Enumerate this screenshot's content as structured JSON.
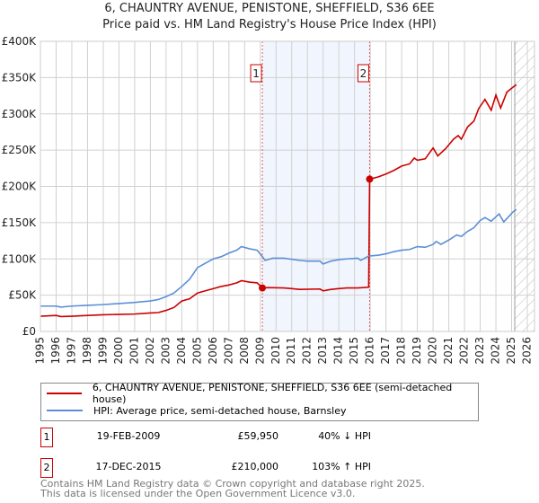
{
  "chart_data": {
    "type": "line",
    "title": "6, CHAUNTRY AVENUE, PENISTONE, SHEFFIELD, S36 6EE",
    "subtitle": "Price paid vs. HM Land Registry's House Price Index (HPI)",
    "xlim": [
      1995,
      2026
    ],
    "ylim": [
      0,
      400000
    ],
    "y_ticks": [
      {
        "v": 0,
        "label": "£0"
      },
      {
        "v": 50000,
        "label": "£50K"
      },
      {
        "v": 100000,
        "label": "£100K"
      },
      {
        "v": 150000,
        "label": "£150K"
      },
      {
        "v": 200000,
        "label": "£200K"
      },
      {
        "v": 250000,
        "label": "£250K"
      },
      {
        "v": 300000,
        "label": "£300K"
      },
      {
        "v": 350000,
        "label": "£350K"
      },
      {
        "v": 400000,
        "label": "£400K"
      }
    ],
    "x_ticks": [
      "1995",
      "1996",
      "1997",
      "1998",
      "1999",
      "2000",
      "2001",
      "2002",
      "2003",
      "2004",
      "2005",
      "2006",
      "2007",
      "2008",
      "2009",
      "2010",
      "2011",
      "2012",
      "2013",
      "2014",
      "2015",
      "2016",
      "2017",
      "2018",
      "2019",
      "2020",
      "2021",
      "2022",
      "2023",
      "2024",
      "2025",
      "2026"
    ],
    "grid": true,
    "shaded_range": [
      2009.13,
      2015.96
    ],
    "forecast_hatch_from": 2025.2,
    "markers": [
      {
        "label": "1",
        "x": 2009.13,
        "y": 59950
      },
      {
        "label": "2",
        "x": 2015.96,
        "y": 210000
      }
    ],
    "series": [
      {
        "name": "6, CHAUNTRY AVENUE, PENISTONE, SHEFFIELD, S36 6EE (semi-detached house)",
        "color": "#cc0000",
        "points": [
          [
            1995,
            21
          ],
          [
            1996,
            22
          ],
          [
            1996.3,
            20.5
          ],
          [
            1997,
            21
          ],
          [
            1998,
            22
          ],
          [
            1999,
            23
          ],
          [
            2000,
            23.5
          ],
          [
            2001,
            24
          ],
          [
            2002,
            25.5
          ],
          [
            2002.5,
            26
          ],
          [
            2003,
            29
          ],
          [
            2003.5,
            33
          ],
          [
            2004,
            42
          ],
          [
            2004.5,
            45
          ],
          [
            2005,
            53
          ],
          [
            2005.5,
            56
          ],
          [
            2006,
            59
          ],
          [
            2006.5,
            62
          ],
          [
            2007,
            64
          ],
          [
            2007.5,
            67
          ],
          [
            2007.8,
            70
          ],
          [
            2008.3,
            68
          ],
          [
            2008.8,
            67
          ],
          [
            2009.13,
            59.95
          ],
          [
            2009.5,
            60.5
          ],
          [
            2010.5,
            60
          ],
          [
            2011,
            59
          ],
          [
            2011.5,
            58
          ],
          [
            2012.8,
            58.5
          ],
          [
            2013,
            56
          ],
          [
            2013.5,
            58
          ],
          [
            2014,
            59
          ],
          [
            2014.5,
            60
          ],
          [
            2015.2,
            60
          ],
          [
            2015.9,
            61
          ],
          [
            2015.96,
            210
          ],
          [
            2016.5,
            213
          ],
          [
            2017,
            217
          ],
          [
            2017.5,
            222
          ],
          [
            2018,
            228
          ],
          [
            2018.5,
            231
          ],
          [
            2018.8,
            239
          ],
          [
            2019,
            236
          ],
          [
            2019.5,
            238
          ],
          [
            2020,
            253
          ],
          [
            2020.3,
            242
          ],
          [
            2020.8,
            252
          ],
          [
            2021.3,
            265
          ],
          [
            2021.6,
            270
          ],
          [
            2021.8,
            265
          ],
          [
            2022.2,
            282
          ],
          [
            2022.6,
            290
          ],
          [
            2022.9,
            307
          ],
          [
            2023.3,
            320
          ],
          [
            2023.7,
            305
          ],
          [
            2024,
            326
          ],
          [
            2024.3,
            308
          ],
          [
            2024.7,
            330
          ],
          [
            2025.1,
            337
          ],
          [
            2025.3,
            340
          ]
        ]
      },
      {
        "name": "HPI: Average price, semi-detached house, Barnsley",
        "color": "#5b8fd6",
        "points": [
          [
            1995,
            35
          ],
          [
            1996,
            35
          ],
          [
            1996.3,
            33.5
          ],
          [
            1997,
            35
          ],
          [
            1998,
            36
          ],
          [
            1999,
            37
          ],
          [
            2000,
            38.5
          ],
          [
            2001,
            40
          ],
          [
            2002,
            42
          ],
          [
            2002.5,
            44
          ],
          [
            2003,
            48
          ],
          [
            2003.5,
            53
          ],
          [
            2004,
            62
          ],
          [
            2004.5,
            72
          ],
          [
            2005,
            88
          ],
          [
            2005.5,
            94
          ],
          [
            2006,
            100
          ],
          [
            2006.5,
            103
          ],
          [
            2007,
            108
          ],
          [
            2007.5,
            112
          ],
          [
            2007.8,
            117
          ],
          [
            2008.3,
            114
          ],
          [
            2008.8,
            112
          ],
          [
            2009.1,
            104
          ],
          [
            2009.3,
            98
          ],
          [
            2009.8,
            101
          ],
          [
            2010.5,
            101
          ],
          [
            2011.5,
            98
          ],
          [
            2012,
            97
          ],
          [
            2012.8,
            97
          ],
          [
            2013,
            93
          ],
          [
            2013.5,
            97
          ],
          [
            2014,
            99
          ],
          [
            2014.5,
            100
          ],
          [
            2015.2,
            101
          ],
          [
            2015.4,
            98
          ],
          [
            2015.9,
            104
          ],
          [
            2016.5,
            105
          ],
          [
            2017,
            107
          ],
          [
            2017.5,
            110
          ],
          [
            2018,
            112
          ],
          [
            2018.5,
            113
          ],
          [
            2019,
            117
          ],
          [
            2019.5,
            116
          ],
          [
            2020,
            120
          ],
          [
            2020.2,
            124
          ],
          [
            2020.5,
            120
          ],
          [
            2021,
            126
          ],
          [
            2021.5,
            133
          ],
          [
            2021.8,
            131
          ],
          [
            2022.2,
            138
          ],
          [
            2022.6,
            143
          ],
          [
            2023,
            153
          ],
          [
            2023.3,
            157
          ],
          [
            2023.7,
            152
          ],
          [
            2024,
            158
          ],
          [
            2024.2,
            162
          ],
          [
            2024.5,
            151
          ],
          [
            2024.8,
            158
          ],
          [
            2025.1,
            165
          ],
          [
            2025.3,
            168
          ]
        ]
      }
    ],
    "y_unit": "thousand GBP"
  },
  "legend": {
    "items": [
      {
        "label": "6, CHAUNTRY AVENUE, PENISTONE, SHEFFIELD, S36 6EE (semi-detached house)",
        "color": "#cc0000"
      },
      {
        "label": "HPI: Average price, semi-detached house, Barnsley",
        "color": "#5b8fd6"
      }
    ]
  },
  "transactions": [
    {
      "num": "1",
      "date": "19-FEB-2009",
      "price": "£59,950",
      "hpi": "40% ↓ HPI"
    },
    {
      "num": "2",
      "date": "17-DEC-2015",
      "price": "£210,000",
      "hpi": "103% ↑ HPI"
    }
  ],
  "footer": {
    "line1": "Contains HM Land Registry data © Crown copyright and database right 2025.",
    "line2": "This data is licensed under the Open Government Licence v3.0."
  }
}
